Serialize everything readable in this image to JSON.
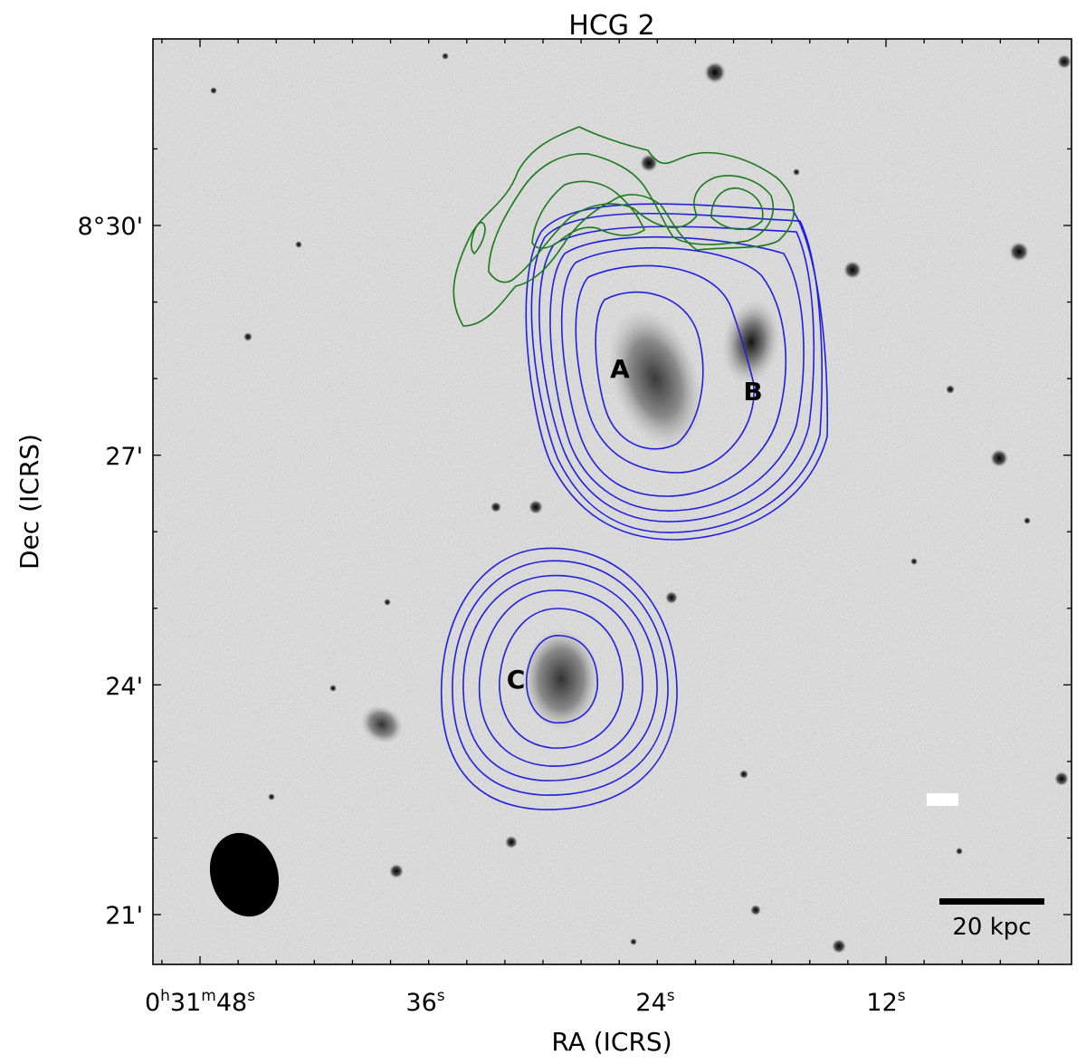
{
  "figure": {
    "title": "HCG 2",
    "xlabel": "RA (ICRS)",
    "ylabel": "Dec (ICRS)",
    "x_ticks": [
      {
        "h": "0",
        "m": "31",
        "s": "48",
        "full": true
      },
      {
        "s": "36"
      },
      {
        "s": "24"
      },
      {
        "s": "12"
      }
    ],
    "y_ticks": [
      "8°30'",
      "27'",
      "24'",
      "21'"
    ],
    "galaxy_labels": [
      "A",
      "B",
      "C"
    ],
    "scalebar_label": "20 kpc",
    "colors": {
      "hi_contours": "#1f1fe0",
      "tail_contours": "#1a7a1a",
      "background": "#d4d4d4",
      "beam": "#000000"
    },
    "icons": [
      "beam-ellipse",
      "scale-bar"
    ]
  }
}
